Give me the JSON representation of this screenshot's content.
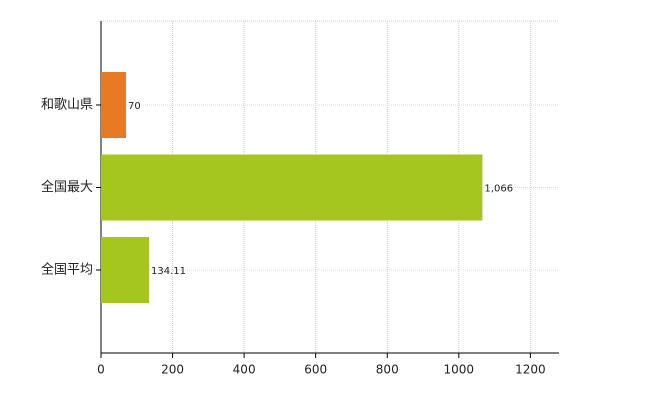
{
  "chart_data": {
    "type": "bar",
    "orientation": "horizontal",
    "categories": [
      "和歌山県",
      "全国最大",
      "全国平均"
    ],
    "values": [
      70,
      1066,
      134.11
    ],
    "value_labels": [
      "70",
      "1,066",
      "134.11"
    ],
    "colors": [
      "#e87a24",
      "#a4c61e",
      "#a4c61e"
    ],
    "xlim": [
      0,
      1280
    ],
    "xticks": [
      0,
      200,
      400,
      600,
      800,
      1000,
      1200
    ],
    "grid": true
  }
}
